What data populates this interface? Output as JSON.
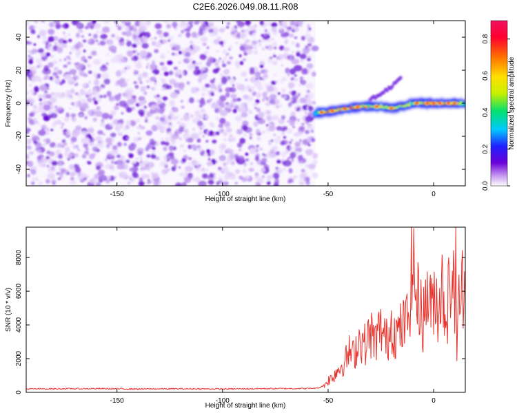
{
  "title": "C2E6.2026.049.08.11.R08",
  "chart_data": [
    {
      "type": "heatmap",
      "xlabel": "Height of straight line (km)",
      "ylabel": "Frequency (Hz)",
      "xlim": [
        -193,
        15
      ],
      "ylim": [
        -50,
        50
      ],
      "xticks": [
        -150,
        -100,
        -50,
        0
      ],
      "xtick_labels": [
        "-150",
        "-100",
        "-50",
        "0"
      ],
      "yticks": [
        -40,
        -20,
        0,
        20,
        40
      ],
      "ytick_labels": [
        "-40",
        "-20",
        "0",
        "20",
        "40"
      ],
      "noise_region_x": [
        -193,
        -56
      ],
      "signal_track": {
        "x": [
          -56,
          -50,
          -45,
          -40,
          -35,
          -30,
          -25,
          -20,
          -15,
          -10,
          -5,
          0,
          5,
          10,
          15
        ],
        "freq": [
          -6,
          -5,
          -4,
          -3,
          -2,
          -2,
          -2,
          -3,
          -2,
          0,
          0,
          0,
          0,
          0,
          0
        ],
        "amplitude": [
          0.3,
          0.85,
          0.7,
          0.8,
          0.75,
          0.6,
          0.7,
          0.55,
          0.6,
          0.5,
          0.65,
          0.85,
          0.8,
          0.85,
          0.5
        ]
      },
      "secondary_branch": {
        "x": [
          -30,
          -25,
          -20,
          -15
        ],
        "freq": [
          2,
          6,
          10,
          16
        ]
      },
      "colorbar": {
        "label": "Normalized spectral amplitude",
        "range": [
          0.0,
          0.9
        ],
        "ticks": [
          0.0,
          0.2,
          0.4,
          0.6,
          0.8
        ],
        "tick_labels": [
          "0.0",
          "0.2",
          "0.4",
          "0.6",
          "0.8"
        ],
        "colors": [
          "#ffffff",
          "#c89bf0",
          "#6a00d8",
          "#2020ff",
          "#00c8ff",
          "#00e070",
          "#c8f000",
          "#ffe000",
          "#ff7000",
          "#ff0030",
          "#f01060"
        ]
      }
    },
    {
      "type": "line",
      "xlabel": "Height of straight line (km)",
      "ylabel": "SNR (10 * v/v)",
      "xlim": [
        -193,
        15
      ],
      "ylim": [
        0,
        9800
      ],
      "xticks": [
        -150,
        -100,
        -50,
        0
      ],
      "xtick_labels": [
        "-150",
        "-100",
        "-50",
        "0"
      ],
      "yticks": [
        0,
        2000,
        4000,
        6000,
        8000
      ],
      "ytick_labels": [
        "0",
        "2000",
        "4000",
        "6000",
        "8000"
      ],
      "color": "#e8302a",
      "series": [
        {
          "name": "SNR",
          "x": [
            -193,
            -180,
            -160,
            -140,
            -120,
            -100,
            -80,
            -60,
            -55,
            -52,
            -50,
            -48,
            -45,
            -42,
            -40,
            -38,
            -35,
            -32,
            -30,
            -28,
            -25,
            -22,
            -20,
            -18,
            -15,
            -12,
            -10,
            -8,
            -6,
            -5,
            -3,
            -1,
            0,
            2,
            4,
            6,
            8,
            10,
            10.5,
            11,
            12,
            13,
            14,
            15
          ],
          "y": [
            200,
            210,
            220,
            200,
            210,
            200,
            220,
            230,
            250,
            400,
            700,
            900,
            1400,
            1800,
            2400,
            2200,
            3200,
            2800,
            3600,
            3000,
            3800,
            3000,
            4200,
            3400,
            3800,
            4400,
            8000,
            5400,
            5400,
            4200,
            6000,
            4800,
            6000,
            5200,
            6200,
            4600,
            6600,
            5800,
            9800,
            1400,
            6400,
            5200,
            6800,
            5600
          ]
        }
      ]
    }
  ]
}
